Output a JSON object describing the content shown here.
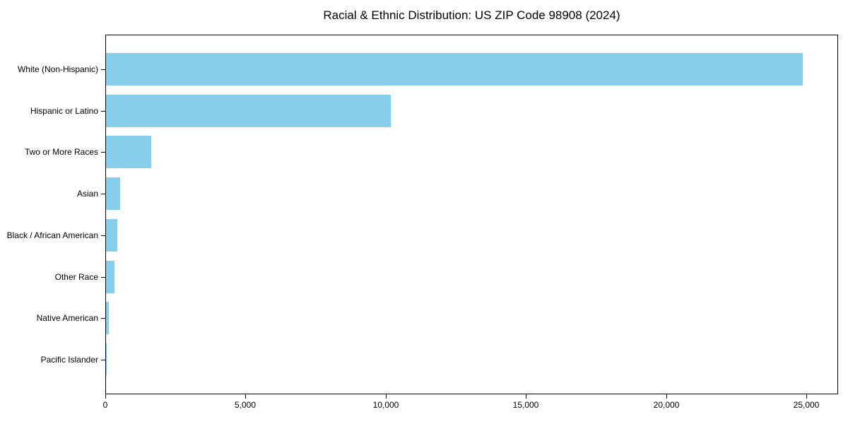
{
  "chart_data": {
    "type": "bar",
    "orientation": "horizontal",
    "title": "Racial & Ethnic Distribution: US ZIP Code 98908 (2024)",
    "categories": [
      "White (Non-Hispanic)",
      "Hispanic or Latino",
      "Two or More Races",
      "Asian",
      "Black / African American",
      "Other Race",
      "Native American",
      "Pacific Islander"
    ],
    "values": [
      24850,
      10150,
      1600,
      500,
      400,
      300,
      100,
      15
    ],
    "xlabel": "",
    "ylabel": "",
    "xlim": [
      0,
      26100
    ],
    "x_ticks": [
      0,
      5000,
      10000,
      15000,
      20000,
      25000
    ],
    "x_tick_labels": [
      "0",
      "5,000",
      "10,000",
      "15,000",
      "20,000",
      "25,000"
    ],
    "bar_color": "#87CEEB",
    "grid": false,
    "legend": null
  }
}
